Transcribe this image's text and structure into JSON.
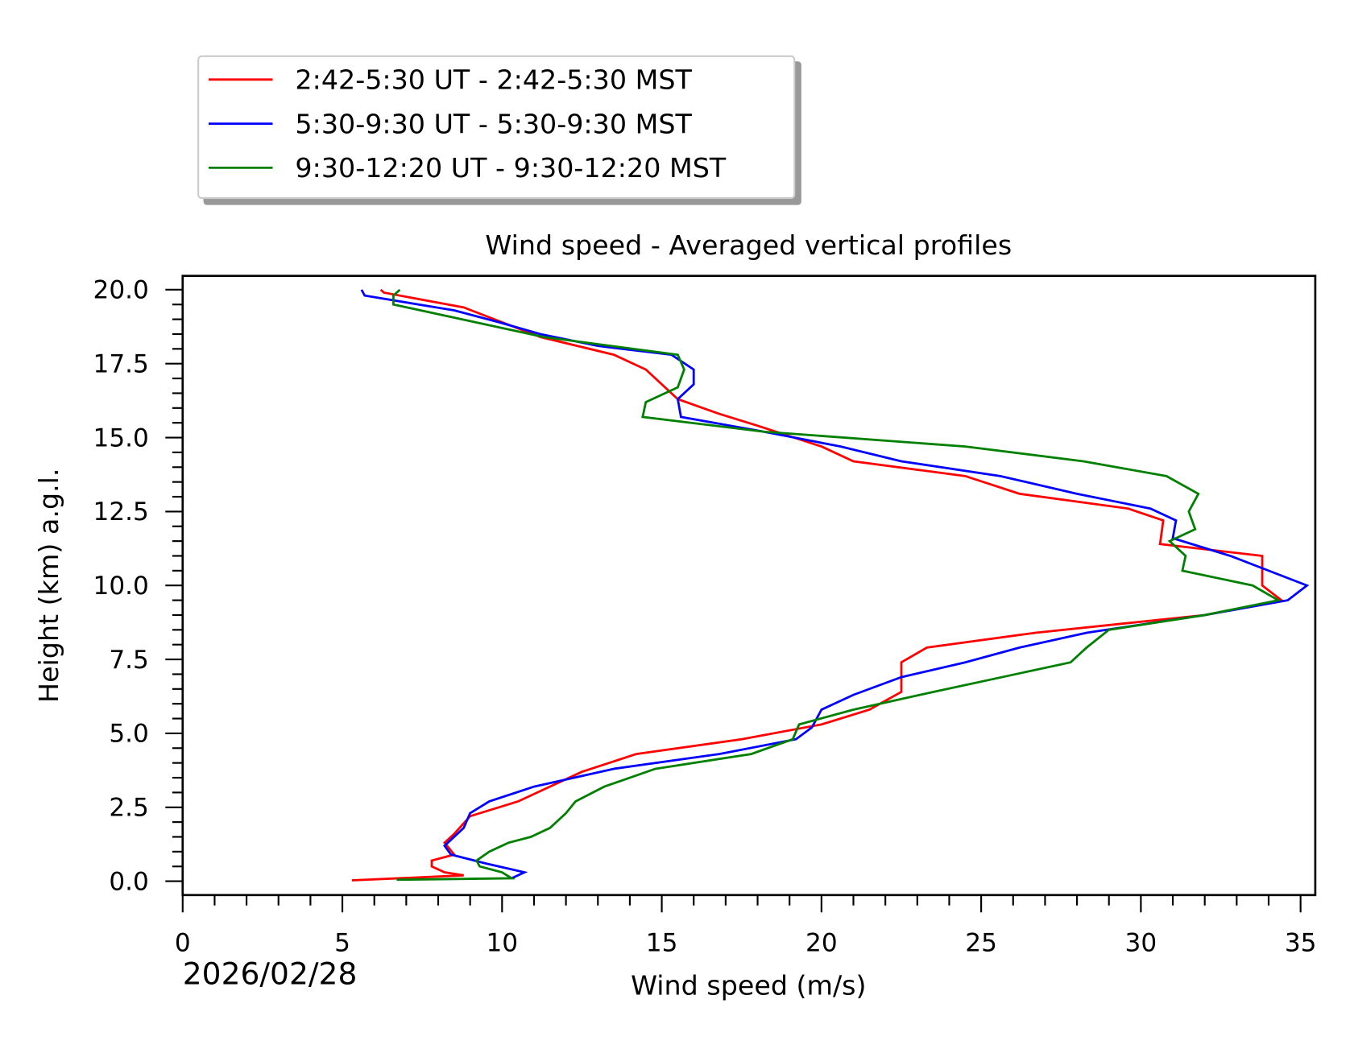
{
  "chart_data": {
    "type": "line",
    "title": "Wind speed - Averaged vertical profiles",
    "xlabel": "Wind speed (m/s)",
    "ylabel": "Height (km) a.g.l.",
    "date_label": "2026/02/28",
    "xlim": [
      0,
      35.4
    ],
    "ylim": [
      -0.45,
      20.45
    ],
    "xticks": [
      0,
      5,
      10,
      15,
      20,
      25,
      30,
      35
    ],
    "xtick_labels": [
      "0",
      "5",
      "10",
      "15",
      "20",
      "25",
      "30",
      "35"
    ],
    "yticks": [
      0,
      2.5,
      5,
      7.5,
      10,
      12.5,
      15,
      17.5,
      20
    ],
    "ytick_labels": [
      "0.0",
      "2.5",
      "5.0",
      "7.5",
      "10.0",
      "12.5",
      "15.0",
      "17.5",
      "20.0"
    ],
    "grid": false,
    "legend_placement": "above-left, outside axes",
    "series": [
      {
        "name": "2:42-5:30 UT - 2:42-5:30 MST",
        "color": "#ff0000",
        "points": [
          [
            5.3,
            0.03
          ],
          [
            8.8,
            0.2
          ],
          [
            8.2,
            0.3
          ],
          [
            7.8,
            0.5
          ],
          [
            7.8,
            0.7
          ],
          [
            8.5,
            0.9
          ],
          [
            8.2,
            1.3
          ],
          [
            8.5,
            1.6
          ],
          [
            9.0,
            2.2
          ],
          [
            10.5,
            2.7
          ],
          [
            12.5,
            3.7
          ],
          [
            14.2,
            4.3
          ],
          [
            17.5,
            4.8
          ],
          [
            20,
            5.3
          ],
          [
            21.5,
            5.8
          ],
          [
            22.5,
            6.4
          ],
          [
            22.5,
            7.4
          ],
          [
            23.3,
            7.9
          ],
          [
            26.7,
            8.4
          ],
          [
            32,
            9.0
          ],
          [
            34.4,
            9.5
          ],
          [
            33.8,
            10.0
          ],
          [
            33.8,
            11.0
          ],
          [
            30.6,
            11.4
          ],
          [
            30.7,
            12.2
          ],
          [
            29.6,
            12.6
          ],
          [
            26.2,
            13.1
          ],
          [
            24.5,
            13.7
          ],
          [
            21,
            14.2
          ],
          [
            20,
            14.7
          ],
          [
            18,
            15.4
          ],
          [
            16.8,
            15.8
          ],
          [
            15.5,
            16.3
          ],
          [
            14.5,
            17.3
          ],
          [
            13.5,
            17.8
          ],
          [
            11.2,
            18.4
          ],
          [
            10.0,
            18.9
          ],
          [
            8.8,
            19.4
          ],
          [
            6.3,
            19.9
          ],
          [
            6.2,
            20.0
          ]
        ]
      },
      {
        "name": "5:30-9:30 UT - 5:30-9:30 MST",
        "color": "#0000ff",
        "points": [
          [
            10.3,
            0.1
          ],
          [
            10.7,
            0.3
          ],
          [
            9.5,
            0.6
          ],
          [
            8.4,
            0.9
          ],
          [
            8.2,
            1.2
          ],
          [
            8.8,
            1.8
          ],
          [
            9.0,
            2.3
          ],
          [
            9.6,
            2.7
          ],
          [
            11,
            3.2
          ],
          [
            13.5,
            3.8
          ],
          [
            16.8,
            4.3
          ],
          [
            19.2,
            4.8
          ],
          [
            19.7,
            5.2
          ],
          [
            20,
            5.8
          ],
          [
            21,
            6.3
          ],
          [
            22.5,
            6.9
          ],
          [
            24.5,
            7.4
          ],
          [
            26.2,
            7.9
          ],
          [
            28.3,
            8.4
          ],
          [
            32,
            9.0
          ],
          [
            34.6,
            9.5
          ],
          [
            35.2,
            10.0
          ],
          [
            32.8,
            11.0
          ],
          [
            31,
            11.6
          ],
          [
            31.1,
            12.2
          ],
          [
            30.3,
            12.6
          ],
          [
            28,
            13.1
          ],
          [
            25.6,
            13.7
          ],
          [
            22.5,
            14.2
          ],
          [
            20.6,
            14.7
          ],
          [
            18.2,
            15.2
          ],
          [
            15.6,
            15.7
          ],
          [
            15.5,
            16.3
          ],
          [
            16,
            16.8
          ],
          [
            16,
            17.3
          ],
          [
            15.3,
            17.8
          ],
          [
            13,
            18.1
          ],
          [
            11.2,
            18.5
          ],
          [
            9.9,
            18.9
          ],
          [
            8.5,
            19.3
          ],
          [
            5.7,
            19.8
          ],
          [
            5.6,
            20.0
          ]
        ]
      },
      {
        "name": "9:30-12:20 UT - 9:30-12:20 MST",
        "color": "#008000",
        "points": [
          [
            6.7,
            0.05
          ],
          [
            10.3,
            0.1
          ],
          [
            10,
            0.3
          ],
          [
            9.3,
            0.5
          ],
          [
            9.2,
            0.7
          ],
          [
            9.6,
            1.0
          ],
          [
            10.2,
            1.3
          ],
          [
            10.9,
            1.5
          ],
          [
            11.5,
            1.8
          ],
          [
            12,
            2.3
          ],
          [
            12.3,
            2.7
          ],
          [
            13.2,
            3.2
          ],
          [
            14.8,
            3.8
          ],
          [
            17.8,
            4.3
          ],
          [
            19.1,
            4.8
          ],
          [
            19.3,
            5.3
          ],
          [
            21,
            5.8
          ],
          [
            23.5,
            6.4
          ],
          [
            27.8,
            7.4
          ],
          [
            28.3,
            7.9
          ],
          [
            29,
            8.5
          ],
          [
            32,
            9.0
          ],
          [
            34.3,
            9.5
          ],
          [
            33.5,
            10.0
          ],
          [
            31.3,
            10.5
          ],
          [
            31.4,
            11.0
          ],
          [
            30.9,
            11.5
          ],
          [
            31.7,
            11.9
          ],
          [
            31.5,
            12.5
          ],
          [
            31.8,
            13.1
          ],
          [
            30.8,
            13.7
          ],
          [
            28.2,
            14.2
          ],
          [
            24.5,
            14.7
          ],
          [
            18.2,
            15.2
          ],
          [
            14.4,
            15.7
          ],
          [
            14.5,
            16.2
          ],
          [
            15.5,
            16.7
          ],
          [
            15.7,
            17.3
          ],
          [
            15.5,
            17.8
          ],
          [
            11.3,
            18.4
          ],
          [
            6.6,
            19.5
          ],
          [
            6.6,
            19.8
          ],
          [
            6.8,
            20.0
          ]
        ]
      }
    ]
  }
}
